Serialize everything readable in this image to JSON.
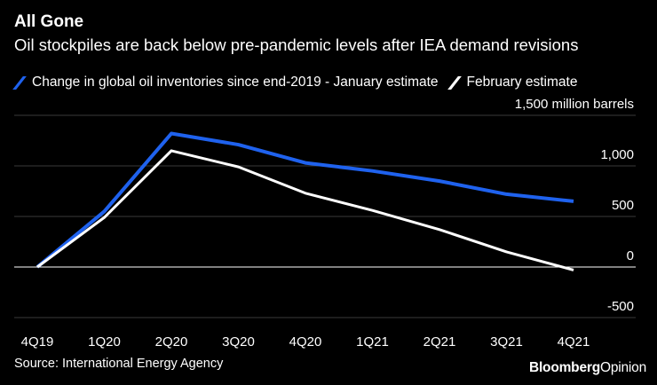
{
  "title": "All Gone",
  "subtitle": "Oil stockpiles are back below pre-pandemic levels after IEA demand revisions",
  "source": "Source: International Energy Agency",
  "brand": {
    "name": "Bloomberg",
    "suffix": "Opinion"
  },
  "colors": {
    "january": "#1f62ee",
    "february": "#ffffff",
    "background": "#000000",
    "grid": "#3a3a3a"
  },
  "chart_data": {
    "type": "line",
    "categories": [
      "4Q19",
      "1Q20",
      "2Q20",
      "3Q20",
      "4Q20",
      "1Q21",
      "2Q21",
      "3Q21",
      "4Q21"
    ],
    "series": [
      {
        "name": "Change in global oil inventories since end-2019 - January estimate",
        "color": "#1f62ee",
        "values": [
          0,
          550,
          1320,
          1210,
          1030,
          950,
          850,
          720,
          650
        ]
      },
      {
        "name": "February estimate",
        "color": "#ffffff",
        "values": [
          0,
          490,
          1150,
          990,
          730,
          560,
          370,
          150,
          -30
        ]
      }
    ],
    "yticks": [
      {
        "value": 1500,
        "label": "1,500 million barrels"
      },
      {
        "value": 1000,
        "label": "1,000"
      },
      {
        "value": 500,
        "label": "500"
      },
      {
        "value": 0,
        "label": "0"
      },
      {
        "value": -500,
        "label": "-500"
      }
    ],
    "ylim": [
      -500,
      1500
    ],
    "grid": true,
    "legend": "top-left"
  }
}
